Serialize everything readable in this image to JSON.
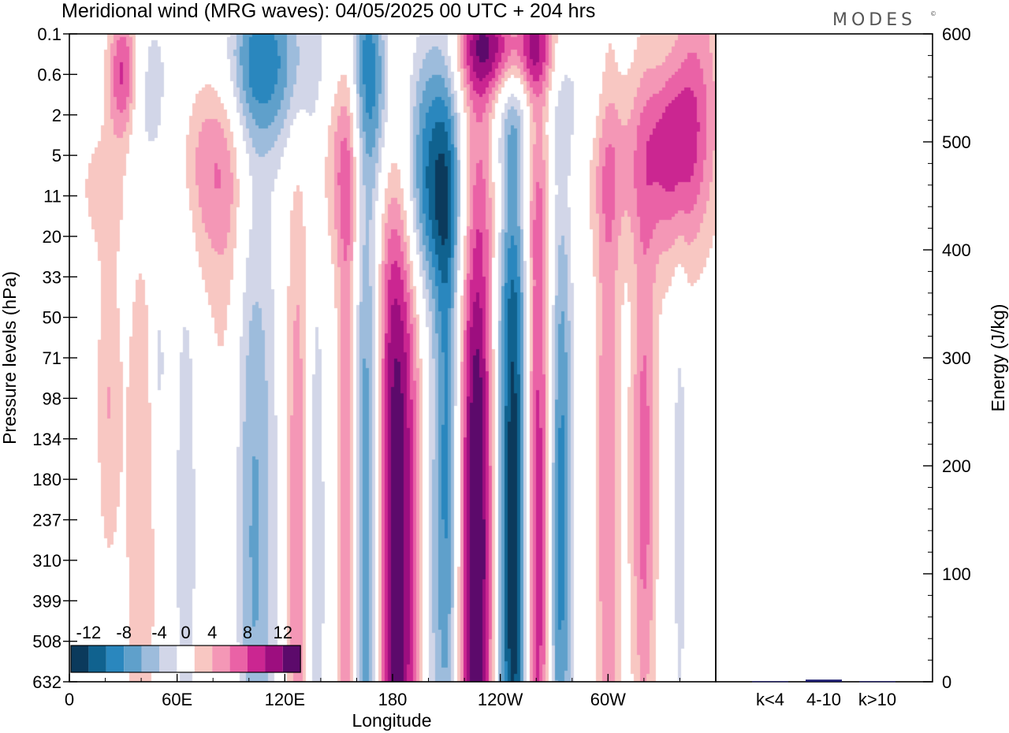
{
  "title": "Meridional wind (MRG waves):  04/05/2025  00 UTC  + 204 hrs",
  "logo": "MODES",
  "logo_mark": "©",
  "chart_data": [
    {
      "type": "heatmap",
      "title": "Meridional wind (MRG waves):  04/05/2025  00 UTC  + 204 hrs",
      "xlabel": "Longitude",
      "ylabel": "Pressure levels (hPa)",
      "x_ticks": [
        "0",
        "60E",
        "120E",
        "180",
        "120W",
        "60W"
      ],
      "x_tick_values_deg": [
        0,
        60,
        120,
        180,
        240,
        300
      ],
      "xlim_deg": [
        0,
        360
      ],
      "y_ticks": [
        "0.1",
        "0.6",
        "2",
        "5",
        "11",
        "20",
        "33",
        "50",
        "71",
        "98",
        "134",
        "180",
        "237",
        "310",
        "399",
        "508",
        "632"
      ],
      "colorbar": {
        "labels": [
          "-12",
          "-8",
          "-4",
          "0",
          "4",
          "8",
          "12"
        ],
        "levels": [
          -14,
          -12,
          -10,
          -8,
          -6,
          -4,
          -2,
          2,
          4,
          6,
          8,
          10,
          12,
          14
        ],
        "colors": [
          "#0b3a5c",
          "#10628f",
          "#2a87be",
          "#5fa0cb",
          "#9dbcdc",
          "#d2d6e8",
          "#ffffff",
          "#f8c7c2",
          "#f497b6",
          "#ea62a6",
          "#cb2691",
          "#9d0e7f",
          "#5c0a6b"
        ]
      },
      "blobs": [
        {
          "lon": 182,
          "lev": 12.5,
          "width": 9,
          "height": 10,
          "value": 14
        },
        {
          "lon": 227,
          "lev": 12.7,
          "width": 7,
          "height": 8,
          "value": 15
        },
        {
          "lon": 248,
          "lev": 12.4,
          "width": 7,
          "height": 9,
          "value": -15
        },
        {
          "lon": 260,
          "lev": 12.6,
          "width": 6,
          "height": 9,
          "value": 12
        },
        {
          "lon": 166,
          "lev": 12.8,
          "width": 6,
          "height": 9,
          "value": -10
        },
        {
          "lon": 155,
          "lev": 12.5,
          "width": 4,
          "height": 8,
          "value": 7
        },
        {
          "lon": 137,
          "lev": 12.8,
          "width": 4,
          "height": 6,
          "value": -4
        },
        {
          "lon": 127,
          "lev": 12.5,
          "width": 5,
          "height": 7,
          "value": 6
        },
        {
          "lon": 210,
          "lev": 11,
          "width": 5,
          "height": 6,
          "value": -9
        },
        {
          "lon": 200,
          "lev": 14.5,
          "width": 4,
          "height": 5,
          "value": -3
        },
        {
          "lon": 275,
          "lev": 11.5,
          "width": 4,
          "height": 6,
          "value": -7
        },
        {
          "lon": 270,
          "lev": 13.5,
          "width": 4,
          "height": 6,
          "value": -5
        },
        {
          "lon": 300,
          "lev": 11,
          "width": 5,
          "height": 8,
          "value": 6
        },
        {
          "lon": 320,
          "lev": 11,
          "width": 5,
          "height": 5,
          "value": 7
        },
        {
          "lon": 340,
          "lev": 11.5,
          "width": 3,
          "height": 5,
          "value": -3
        },
        {
          "lon": 100,
          "lev": 12.5,
          "width": 10,
          "height": 7,
          "value": -8
        },
        {
          "lon": 90,
          "lev": 12.4,
          "width": 8,
          "height": 9,
          "value": 5
        },
        {
          "lon": 40,
          "lev": 12,
          "width": 6,
          "height": 6,
          "value": 4
        },
        {
          "lon": 65,
          "lev": 12.2,
          "width": 4,
          "height": 5,
          "value": -4
        },
        {
          "lon": 22,
          "lev": 9.1,
          "width": 5,
          "height": 3,
          "value": 4
        },
        {
          "lon": 50,
          "lev": 8.2,
          "width": 3,
          "height": 2,
          "value": -3
        },
        {
          "lon": 30,
          "lev": 1,
          "width": 6,
          "height": 1.2,
          "value": 10
        },
        {
          "lon": 100,
          "lev": 0.7,
          "width": 25,
          "height": 1.5,
          "value": -10
        },
        {
          "lon": 80,
          "lev": 1.8,
          "width": 14,
          "height": 2.5,
          "value": 8
        },
        {
          "lon": 40,
          "lev": 2.2,
          "width": 10,
          "height": 2,
          "value": -4
        },
        {
          "lon": 170,
          "lev": 1.2,
          "width": 12,
          "height": 2,
          "value": -9
        },
        {
          "lon": 155,
          "lev": 2.8,
          "width": 10,
          "height": 2,
          "value": 7
        },
        {
          "lon": 200,
          "lev": 2.8,
          "width": 12,
          "height": 2.5,
          "value": -8
        },
        {
          "lon": 245,
          "lev": 0.3,
          "width": 20,
          "height": 0.9,
          "value": 12
        },
        {
          "lon": 280,
          "lev": 1.5,
          "width": 16,
          "height": 2,
          "value": -4
        },
        {
          "lon": 340,
          "lev": 1.8,
          "width": 14,
          "height": 2.5,
          "value": 11
        },
        {
          "lon": 300,
          "lev": 3.2,
          "width": 22,
          "height": 1.5,
          "value": 4
        },
        {
          "lon": 210,
          "lev": 4.3,
          "width": 20,
          "height": 1.5,
          "value": -4
        },
        {
          "lon": 240,
          "lev": 4.3,
          "width": 15,
          "height": 1.2,
          "value": 3
        },
        {
          "lon": 22,
          "lev": 3.8,
          "width": 14,
          "height": 1.2,
          "value": 3
        },
        {
          "lon": 335,
          "lev": 0.4,
          "width": 10,
          "height": 1.2,
          "value": -5
        }
      ]
    },
    {
      "type": "bar",
      "ylabel": "Energy (J/kg)",
      "categories": [
        "k<4",
        "4-10",
        "k>10"
      ],
      "values": [
        0.5,
        2,
        0.5
      ],
      "ylim": [
        0,
        600
      ],
      "y_ticks": [
        "0",
        "100",
        "200",
        "300",
        "400",
        "500",
        "600"
      ],
      "bar_color": "#1a1a6e"
    }
  ]
}
